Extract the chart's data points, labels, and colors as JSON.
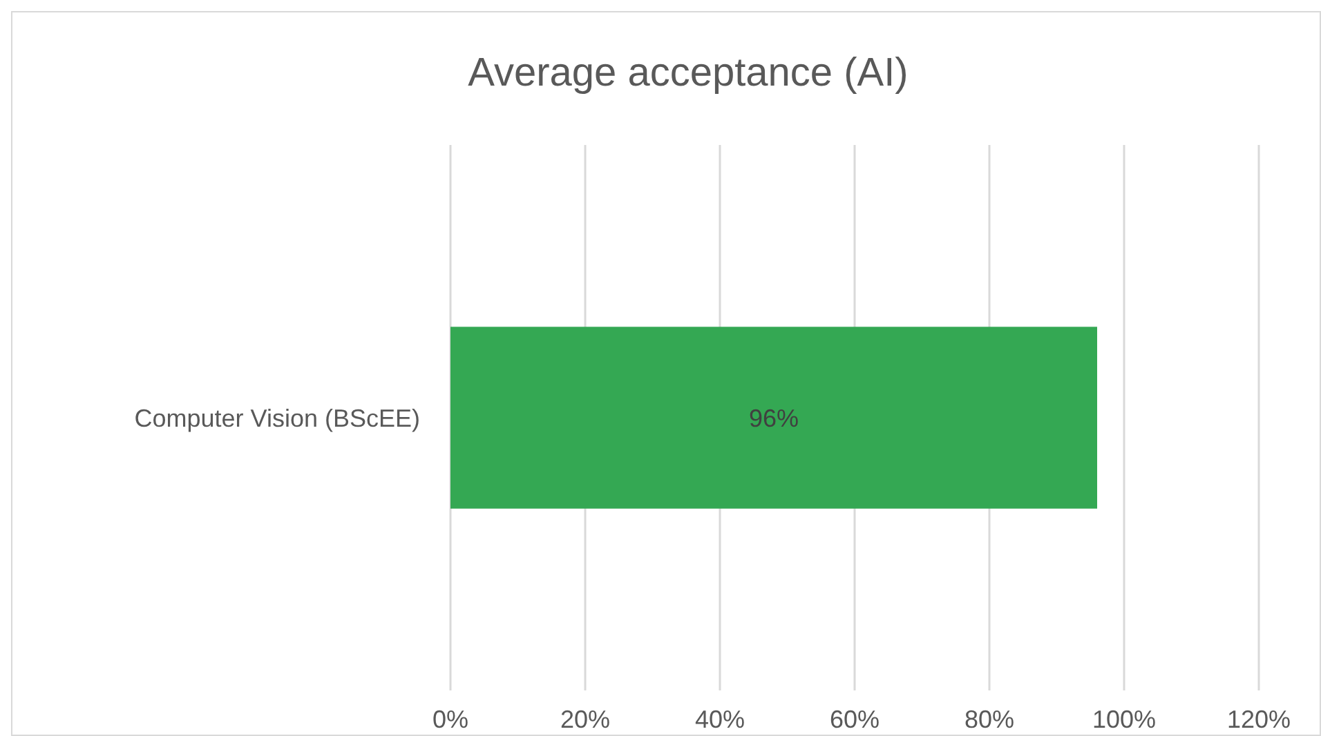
{
  "chart_data": {
    "type": "bar",
    "orientation": "horizontal",
    "title": "Average acceptance (AI)",
    "categories": [
      "Computer Vision (BScEE)"
    ],
    "values": [
      96
    ],
    "color": "#34a853",
    "value_labels": [
      "96%"
    ],
    "xlim": [
      0,
      120
    ],
    "xticks": [
      {
        "value": 0,
        "label": "0%"
      },
      {
        "value": 20,
        "label": "20%"
      },
      {
        "value": 40,
        "label": "40%"
      },
      {
        "value": 60,
        "label": "60%"
      },
      {
        "value": 80,
        "label": "80%"
      },
      {
        "value": 100,
        "label": "100%"
      },
      {
        "value": 120,
        "label": "120%"
      }
    ],
    "grid": "x"
  }
}
